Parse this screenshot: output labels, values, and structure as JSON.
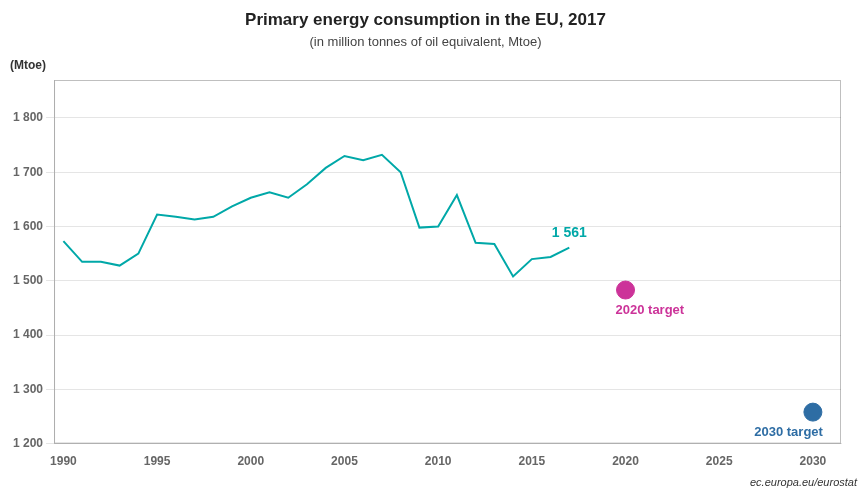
{
  "chart_data": {
    "type": "line",
    "title": "Primary energy consumption in the EU, 2017",
    "subtitle": "(in million tonnes of oil equivalent, Mtoe)",
    "ylabel": "(Mtoe)",
    "x": [
      1990,
      1991,
      1992,
      1993,
      1994,
      1995,
      1996,
      1997,
      1998,
      1999,
      2000,
      2001,
      2002,
      2003,
      2004,
      2005,
      2006,
      2007,
      2008,
      2009,
      2010,
      2011,
      2012,
      2013,
      2014,
      2015,
      2016,
      2017
    ],
    "values": [
      1573,
      1535,
      1535,
      1528,
      1550,
      1622,
      1618,
      1613,
      1618,
      1637,
      1653,
      1663,
      1653,
      1678,
      1708,
      1730,
      1722,
      1732,
      1700,
      1598,
      1600,
      1658,
      1570,
      1568,
      1508,
      1540,
      1544,
      1561
    ],
    "color": "#00A8A8",
    "annotations": [
      {
        "text": "1 561",
        "x": 2017,
        "y": 1561,
        "color": "#00A8A8"
      }
    ],
    "targets": [
      {
        "x": 2020,
        "y": 1483,
        "label": "2020 target",
        "color": "#CC3399"
      },
      {
        "x": 2030,
        "y": 1258,
        "label": "2030 target",
        "color": "#2E6DA4"
      }
    ],
    "source": "ec.europa.eu/eurostat",
    "xlim": [
      1989.5,
      2031.5
    ],
    "xticks": [
      1990,
      1995,
      2000,
      2005,
      2010,
      2015,
      2020,
      2025,
      2030
    ],
    "ylim": [
      1200,
      1870
    ],
    "yticks": [
      {
        "value": 1200,
        "label": "1 200"
      },
      {
        "value": 1300,
        "label": "1 300"
      },
      {
        "value": 1400,
        "label": "1 400"
      },
      {
        "value": 1500,
        "label": "1 500"
      },
      {
        "value": 1600,
        "label": "1 600"
      },
      {
        "value": 1700,
        "label": "1 700"
      },
      {
        "value": 1800,
        "label": "1 800"
      }
    ],
    "grid": "y"
  }
}
